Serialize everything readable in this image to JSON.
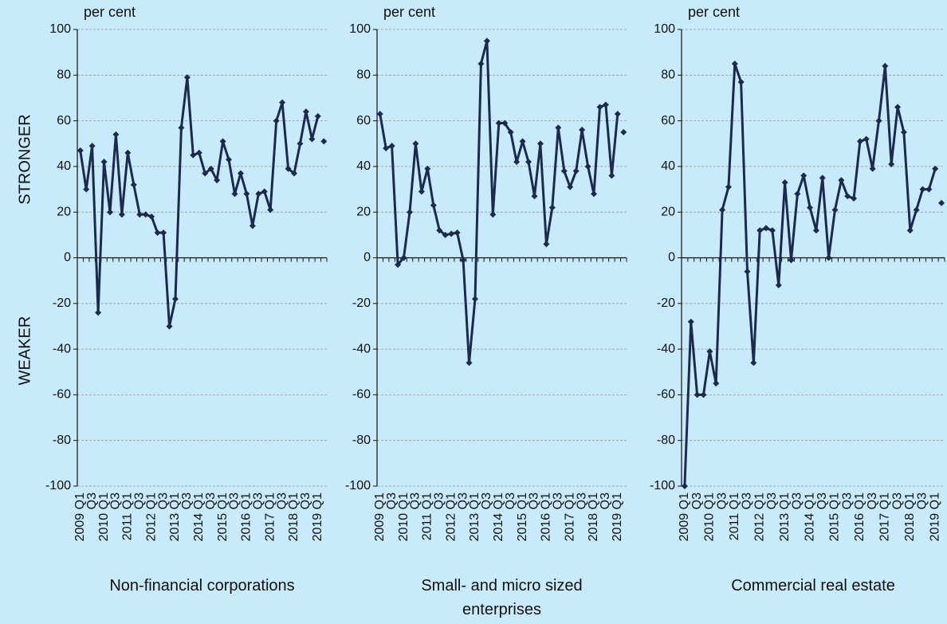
{
  "chart_data": [
    {
      "type": "line",
      "title": "Non-financial corporations",
      "ylabel": "per cent",
      "categories": [
        "2009 Q1",
        null,
        "Q3",
        null,
        "2010 Q1",
        null,
        "Q3",
        null,
        "2011 Q1",
        null,
        "Q3",
        null,
        "2012 Q1",
        null,
        "Q3",
        null,
        "2013 Q1",
        null,
        "Q3",
        null,
        "2014 Q1",
        null,
        "Q3",
        null,
        "2015 Q1",
        null,
        "Q3",
        null,
        "2016 Q1",
        null,
        "Q3",
        null,
        "2017 Q1",
        null,
        "Q3",
        null,
        "2018 Q1",
        null,
        "Q3",
        null,
        "2019 Q1",
        null
      ],
      "series": [
        {
          "color": "#1c2a4e",
          "values": [
            47,
            30,
            49,
            -24,
            42,
            20,
            54,
            19,
            46,
            32,
            19,
            19,
            18,
            11,
            11,
            -30,
            -18,
            57,
            79,
            45,
            46,
            37,
            39,
            34,
            51,
            43,
            28,
            37,
            28,
            14,
            28,
            29,
            21,
            60,
            68,
            39,
            37,
            50,
            64,
            52,
            62,
            null
          ]
        },
        {
          "color": "#1c2a4e",
          "line": false,
          "values": [
            null,
            null,
            null,
            null,
            null,
            null,
            null,
            null,
            null,
            null,
            null,
            null,
            null,
            null,
            null,
            null,
            null,
            null,
            null,
            null,
            null,
            null,
            null,
            null,
            null,
            null,
            null,
            null,
            null,
            null,
            null,
            null,
            null,
            null,
            null,
            null,
            null,
            null,
            null,
            null,
            null,
            51
          ]
        }
      ],
      "ylim": [
        -100,
        100
      ],
      "yticks": [
        -100,
        -80,
        -60,
        -40,
        -20,
        0,
        20,
        40,
        60,
        80,
        100
      ],
      "grid": true
    },
    {
      "type": "line",
      "title": "Small- and micro sized enterprises",
      "ylabel": "per cent",
      "categories": [
        "2009 Q1",
        null,
        "Q3",
        null,
        "2010 Q1",
        null,
        "Q3",
        null,
        "2011 Q1",
        null,
        "Q3",
        null,
        "2012 Q1",
        null,
        "Q3",
        null,
        "2013 Q1",
        null,
        "Q3",
        null,
        "2014 Q1",
        null,
        "Q3",
        null,
        "2015 Q1",
        null,
        "Q3",
        null,
        "2016 Q1",
        null,
        "Q3",
        null,
        "2017 Q1",
        null,
        "Q3",
        null,
        "2018 Q1",
        null,
        "Q3",
        null,
        "2019 Q1",
        null
      ],
      "series": [
        {
          "color": "#1c2a4e",
          "values": [
            63,
            48,
            49,
            -3,
            0,
            20,
            50,
            29,
            39,
            23,
            12,
            10,
            10.5,
            11,
            -1,
            -46,
            -18,
            85,
            95,
            19,
            59,
            59,
            55,
            42,
            51,
            42,
            27,
            50,
            6,
            22,
            57,
            38,
            31,
            38,
            56,
            40,
            28,
            66,
            67,
            36,
            63,
            null
          ]
        },
        {
          "color": "#1c2a4e",
          "line": false,
          "values": [
            null,
            null,
            null,
            null,
            null,
            null,
            null,
            null,
            null,
            null,
            null,
            null,
            null,
            null,
            null,
            null,
            null,
            null,
            null,
            null,
            null,
            null,
            null,
            null,
            null,
            null,
            null,
            null,
            null,
            null,
            null,
            null,
            null,
            null,
            null,
            null,
            null,
            null,
            null,
            null,
            null,
            55
          ]
        }
      ],
      "ylim": [
        -100,
        100
      ],
      "yticks": [
        -100,
        -80,
        -60,
        -40,
        -20,
        0,
        20,
        40,
        60,
        80,
        100
      ],
      "grid": true
    },
    {
      "type": "line",
      "title": "Commercial real estate",
      "ylabel": "per cent",
      "categories": [
        "2009 Q1",
        null,
        "Q3",
        null,
        "2010 Q1",
        null,
        "Q3",
        null,
        "2011 Q1",
        null,
        "Q3",
        null,
        "2012 Q1",
        null,
        "Q3",
        null,
        "2013 Q1",
        null,
        "Q3",
        null,
        "2014 Q1",
        null,
        "Q3",
        null,
        "2015 Q1",
        null,
        "Q3",
        null,
        "2016 Q1",
        null,
        "Q3",
        null,
        "2017 Q1",
        null,
        "Q3",
        null,
        "2018 Q1",
        null,
        "Q3",
        null,
        "2019 Q1",
        null
      ],
      "series": [
        {
          "color": "#1c2a4e",
          "values": [
            -100,
            -28,
            -60,
            -60,
            -41,
            -55,
            21,
            31,
            85,
            77,
            -6,
            -46,
            12,
            13,
            12,
            -12,
            33,
            -1,
            28,
            36,
            22,
            12,
            35,
            0,
            21,
            34,
            27,
            26,
            51,
            52,
            39,
            60,
            84,
            41,
            66,
            55,
            12,
            21,
            30,
            30,
            39,
            null
          ]
        },
        {
          "color": "#1c2a4e",
          "line": false,
          "values": [
            null,
            null,
            null,
            null,
            null,
            null,
            null,
            null,
            null,
            null,
            null,
            null,
            null,
            null,
            null,
            null,
            null,
            null,
            null,
            null,
            null,
            null,
            null,
            null,
            null,
            null,
            null,
            null,
            null,
            null,
            null,
            null,
            null,
            null,
            null,
            null,
            null,
            null,
            null,
            null,
            null,
            24
          ]
        }
      ],
      "ylim": [
        -100,
        100
      ],
      "yticks": [
        -100,
        -80,
        -60,
        -40,
        -20,
        0,
        20,
        40,
        60,
        80,
        100
      ],
      "grid": true
    }
  ],
  "side_labels": {
    "upper": "STRONGER",
    "lower": "WEAKER"
  }
}
